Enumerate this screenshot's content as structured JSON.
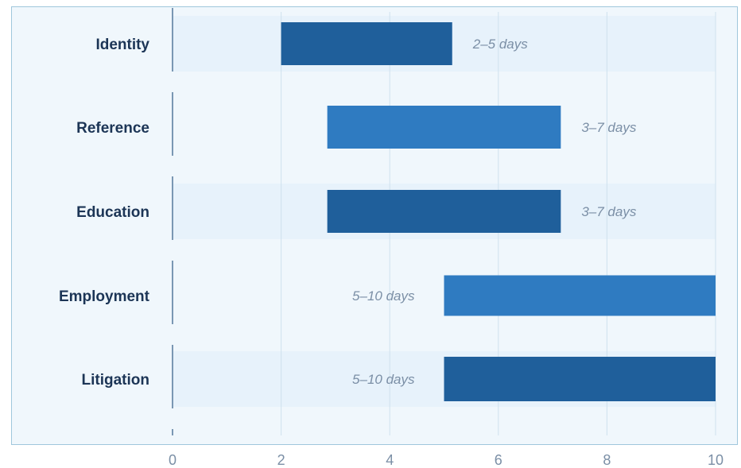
{
  "chart_data": {
    "type": "bar",
    "orientation": "horizontal",
    "subtype": "floating-range",
    "categories": [
      "Identity",
      "Reference",
      "Education",
      "Employment",
      "Litigation"
    ],
    "ranges": [
      {
        "category": "Identity",
        "start": 2,
        "end": 5.15,
        "label": "2–5 days"
      },
      {
        "category": "Reference",
        "start": 2.85,
        "end": 7.15,
        "label": "3–7 days"
      },
      {
        "category": "Education",
        "start": 2.85,
        "end": 7.15,
        "label": "3–7 days"
      },
      {
        "category": "Employment",
        "start": 5,
        "end": 10,
        "label": "5–10 days"
      },
      {
        "category": "Litigation",
        "start": 5,
        "end": 10,
        "label": "5–10 days"
      }
    ],
    "xlim": [
      0,
      10
    ],
    "xticks": [
      "0",
      "2",
      "4",
      "6",
      "8",
      "10"
    ],
    "grid": true,
    "title": "",
    "xlabel": "",
    "ylabel": "",
    "colors": {
      "dark_bar": "#1f5f9b",
      "light_bar": "#2f7bc1",
      "band": "#e7f2fb",
      "background": "#f0f7fc",
      "grid": "#cfe1ee",
      "frame": "#9fc7dc",
      "category_text": "#1c3556",
      "muted_text": "#7b8fa6"
    }
  }
}
